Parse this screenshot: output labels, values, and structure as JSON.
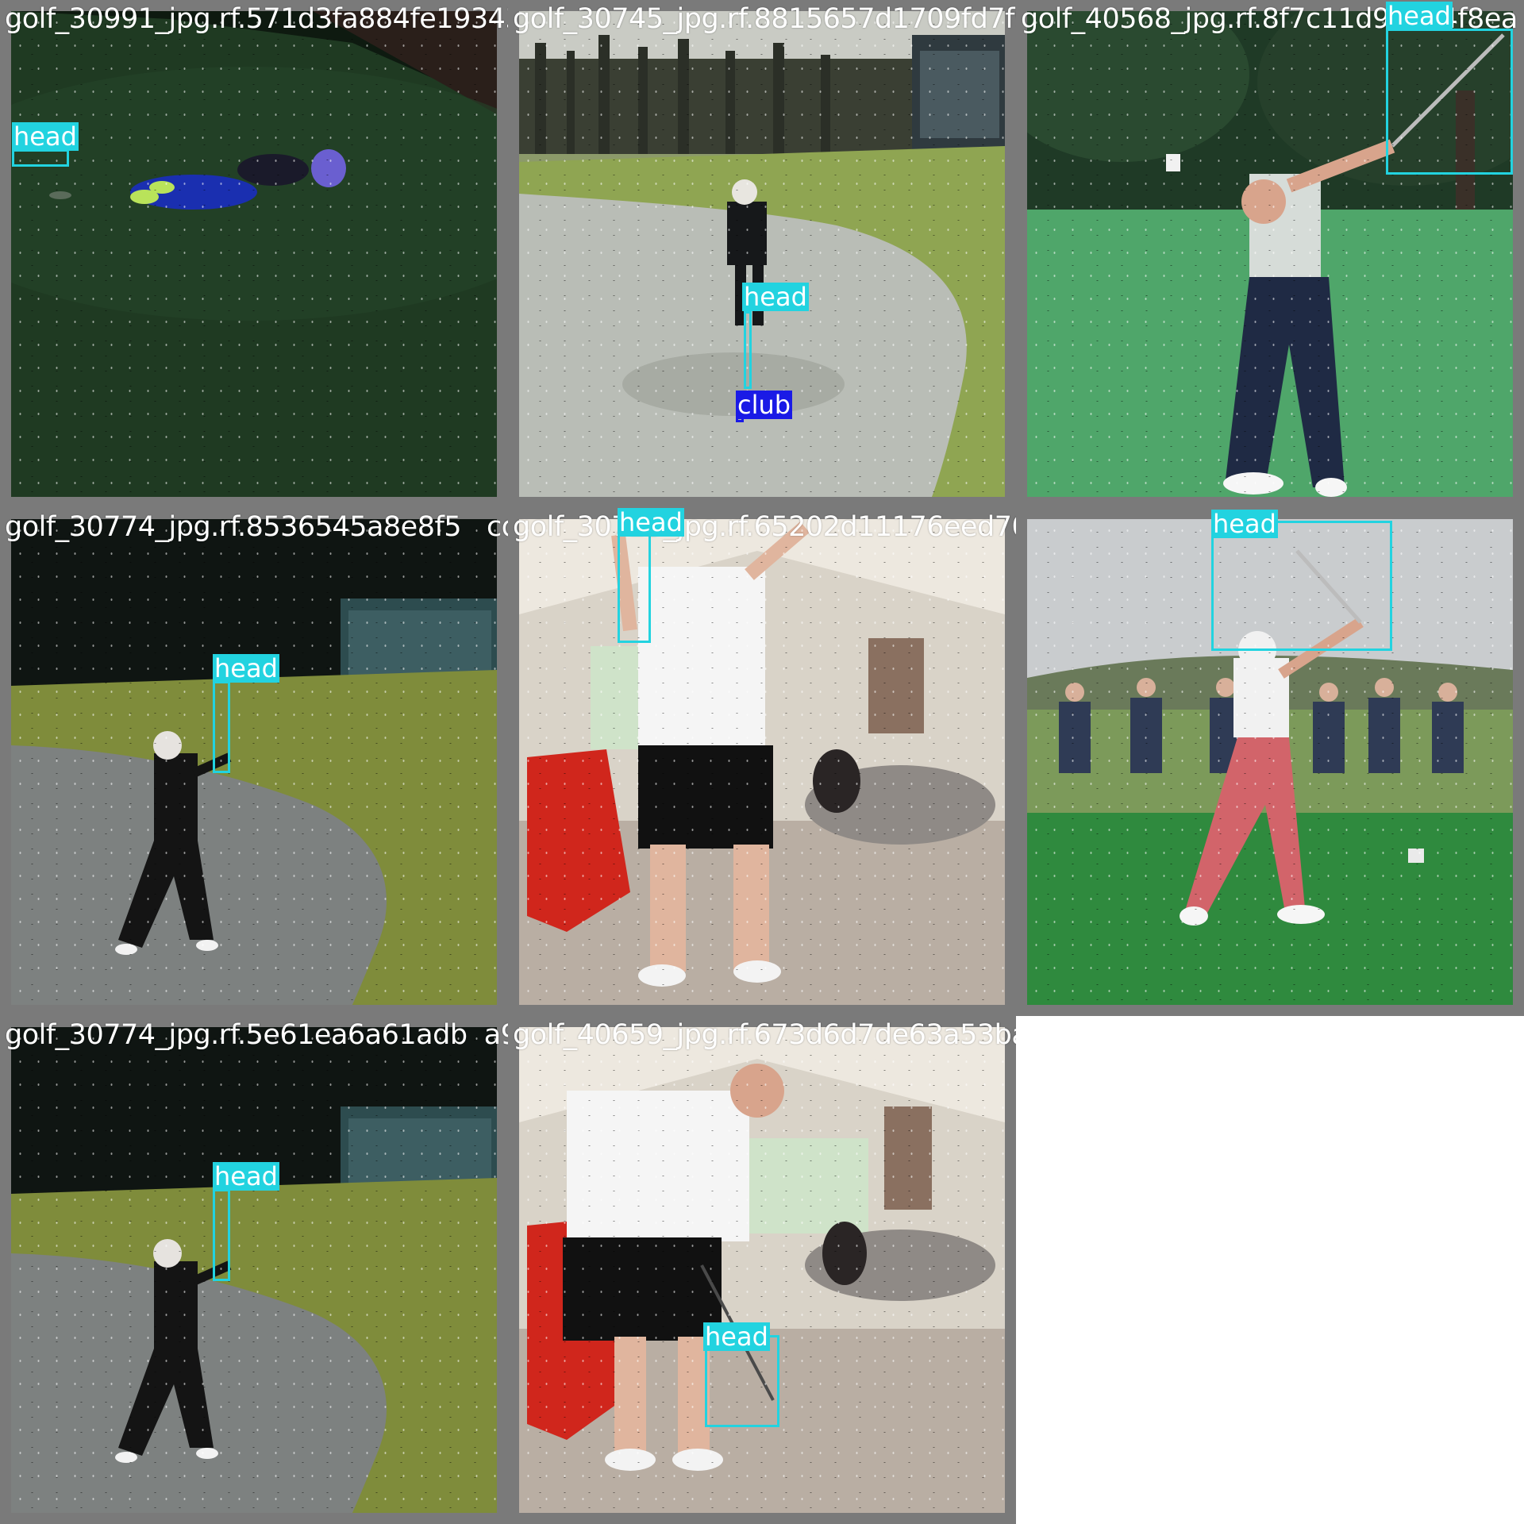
{
  "tiles": [
    {
      "filename": "golf_30991_jpg.rf.571d3fa884fe19343b6b9"
    },
    {
      "filename": "golf_30745_jpg.rf.8815657d1709fd7f96bf7"
    },
    {
      "filename": "golf_40568_jpg.rf.8f7c11d9      4f8ea"
    },
    {
      "filename": "golf_30774_jpg.rf.8536545a8e8f5   cd35f23"
    },
    {
      "filename": "golf_30725_jpg.rf.65202d11176eed705"
    },
    {
      "filename": ""
    },
    {
      "filename": "golf_30774_jpg.rf.5e61ea6a61adb  a98d3"
    },
    {
      "filename": "golf_40659_jpg.rf.673d6d7de63a53baf5e13f"
    }
  ],
  "labels": {
    "head": "head",
    "club": "club"
  },
  "colors": {
    "head_box": "#22d3e0",
    "club_box": "#1a1ae6",
    "tile_border": "#7a7a7a"
  }
}
